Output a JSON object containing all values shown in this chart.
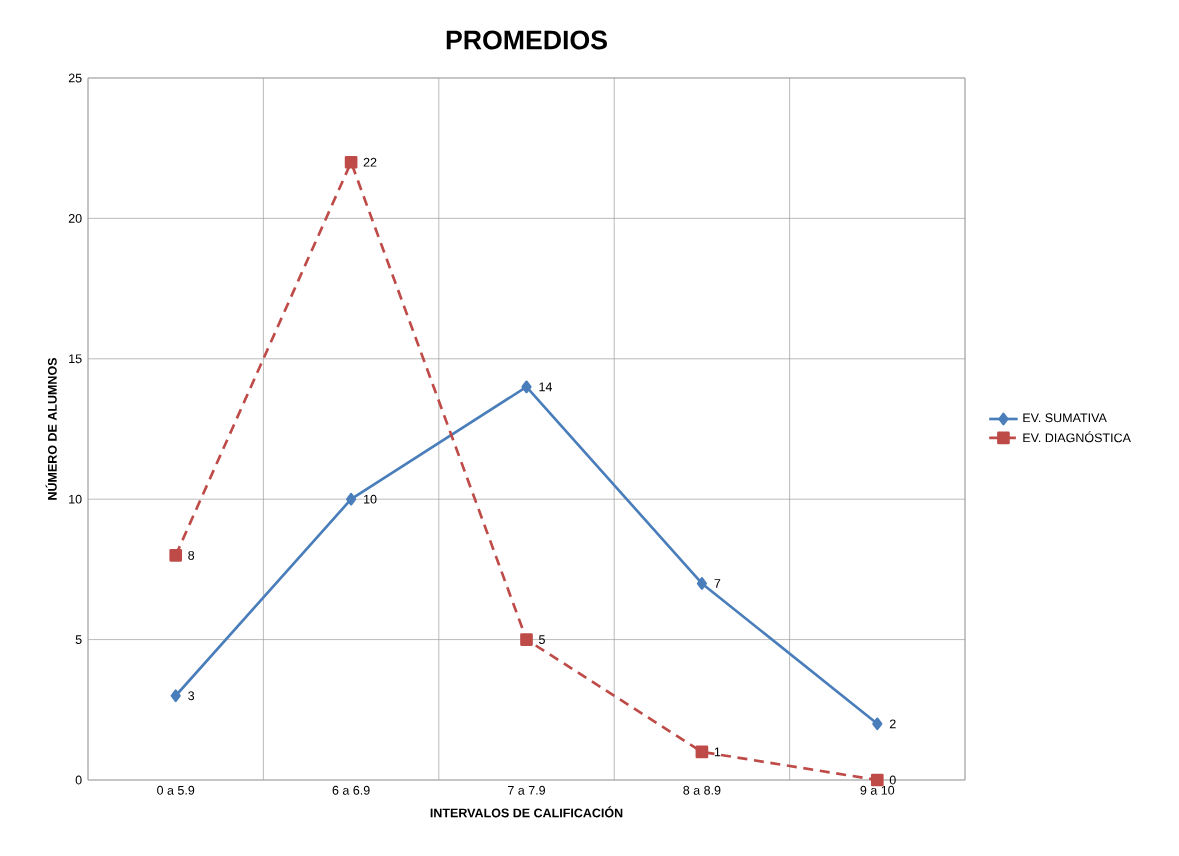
{
  "chart_data": {
    "type": "line",
    "title": "PROMEDIOS",
    "xlabel": "INTERVALOS DE CALIFICACIÓN",
    "ylabel": "NÚMERO DE ALUMNOS",
    "categories": [
      "0 a 5.9",
      "6 a 6.9",
      "7 a 7.9",
      "8 a 8.9",
      "9 a 10"
    ],
    "series": [
      {
        "name": "EV. SUMATIVA",
        "color": "#4a7ebb",
        "values": [
          3,
          10,
          14,
          7,
          2
        ],
        "marker": "diamond",
        "line_style": "solid"
      },
      {
        "name": "EV. DIAGNÓSTICA",
        "color": "#be4b48",
        "values": [
          8,
          22,
          5,
          1,
          0
        ],
        "marker": "square",
        "line_style": "dashed"
      }
    ],
    "ylim": [
      0,
      25
    ],
    "yticks": [
      0,
      5,
      10,
      15,
      20,
      25
    ],
    "grid": true,
    "legend": "right",
    "data_labels": true
  }
}
